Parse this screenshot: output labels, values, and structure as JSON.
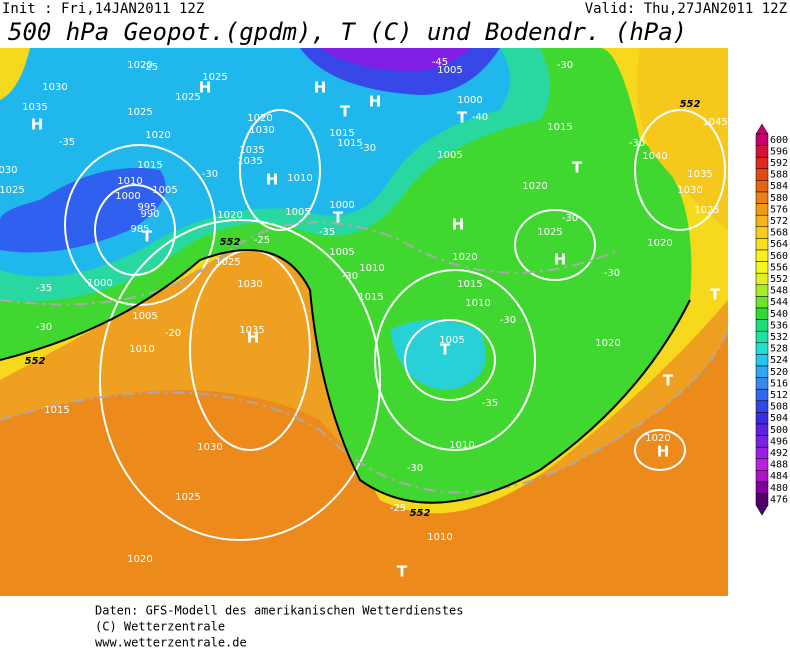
{
  "header": {
    "init": "Init : Fri,14JAN2011 12Z",
    "valid": "Valid: Thu,27JAN2011 12Z",
    "title": "500 hPa Geopot.(gpdm), T (C) und Bodendr. (hPa)"
  },
  "colorbar": {
    "levels": [
      600,
      596,
      592,
      588,
      584,
      580,
      576,
      572,
      568,
      564,
      560,
      556,
      552,
      548,
      544,
      540,
      536,
      532,
      528,
      524,
      520,
      516,
      512,
      508,
      504,
      500,
      496,
      492,
      488,
      484,
      480,
      476
    ],
    "colors": [
      "#c8006e",
      "#d8103c",
      "#e02a1c",
      "#e34812",
      "#e86414",
      "#ee8016",
      "#f29a18",
      "#f6b41a",
      "#f8cc1c",
      "#fae01e",
      "#fcf01e",
      "#f4f81e",
      "#e0f020",
      "#a8ec22",
      "#6ce428",
      "#30d838",
      "#20dc78",
      "#20e0a8",
      "#22e0d0",
      "#24c8ec",
      "#30a8f0",
      "#3888f0",
      "#3468ee",
      "#3048e8",
      "#3a2ce0",
      "#5a24e0",
      "#7a22e4",
      "#9a20e4",
      "#ba1ee0",
      "#b010c8",
      "#84009c",
      "#52006a"
    ]
  },
  "map": {
    "pressure_centers": [
      "H",
      "H",
      "H",
      "H",
      "H",
      "H",
      "H",
      "H",
      "H",
      "T",
      "T",
      "T",
      "T",
      "T",
      "T",
      "T",
      "T",
      "T"
    ],
    "isobar_labels": [
      "1020",
      "1030",
      "1025",
      "1025",
      "1025",
      "1035",
      "1020",
      "1015",
      "1010",
      "1005",
      "1000",
      "995",
      "990",
      "985",
      "1000",
      "1005",
      "1010",
      "1015",
      "1025",
      "030",
      "1020",
      "1030",
      "1035",
      "1035",
      "1010",
      "1005",
      "1020",
      "1025",
      "1030",
      "1035",
      "1030",
      "1025",
      "1020",
      "1005",
      "1000",
      "1015",
      "1015",
      "1000",
      "1005",
      "1005",
      "1010",
      "1015",
      "1020",
      "1015",
      "1010",
      "1005",
      "1010",
      "1020",
      "1025",
      "1015",
      "1020",
      "1020",
      "1045",
      "1040",
      "1035",
      "1030",
      "1025",
      "1020",
      "1010"
    ],
    "isotherm_labels": [
      "-25",
      "-35",
      "-30",
      "-25",
      "-30",
      "-30",
      "-35",
      "-30",
      "-30",
      "-30",
      "-35",
      "-30",
      "-25",
      "-20",
      "-35",
      "-30",
      "-40",
      "-45",
      "-30",
      "-30"
    ],
    "contour_552": [
      "552",
      "552",
      "552",
      "552"
    ]
  },
  "footer": {
    "lines": [
      "Daten: GFS-Modell des amerikanischen Wetterdienstes",
      "(C) Wetterzentrale",
      "www.wetterzentrale.de"
    ]
  }
}
